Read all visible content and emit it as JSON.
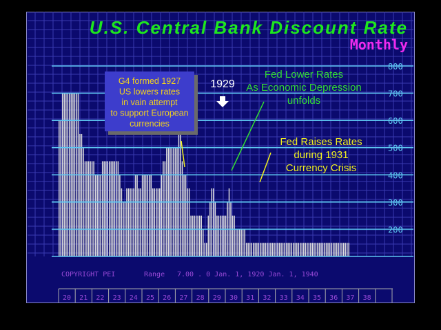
{
  "chart_data": {
    "type": "bar",
    "title": "U.S. Central Bank Discount Rate",
    "subtitle": "Monthly",
    "y_tick_labels": [
      "800",
      "700",
      "600",
      "500",
      "400",
      "300",
      "200"
    ],
    "y_ticks": [
      800,
      700,
      600,
      500,
      400,
      300,
      200
    ],
    "ylim": [
      100,
      800
    ],
    "x_tick_labels": [
      "20",
      "21",
      "22",
      "23",
      "24",
      "25",
      "26",
      "27",
      "28",
      "29",
      "30",
      "31",
      "32",
      "33",
      "34",
      "35",
      "36",
      "37",
      "38"
    ],
    "x_range_years": [
      1920,
      1940
    ],
    "values": [
      600,
      600,
      700,
      700,
      700,
      700,
      700,
      700,
      700,
      700,
      700,
      700,
      550,
      550,
      500,
      450,
      450,
      450,
      450,
      450,
      450,
      400,
      400,
      400,
      400,
      450,
      450,
      450,
      450,
      450,
      450,
      450,
      450,
      450,
      450,
      400,
      350,
      300,
      300,
      350,
      350,
      350,
      350,
      350,
      400,
      400,
      350,
      350,
      400,
      400,
      400,
      400,
      400,
      400,
      350,
      350,
      350,
      350,
      350,
      400,
      450,
      450,
      500,
      500,
      500,
      500,
      500,
      500,
      500,
      600,
      600,
      450,
      400,
      400,
      350,
      350,
      250,
      250,
      250,
      250,
      250,
      250,
      250,
      200,
      150,
      150,
      250,
      300,
      350,
      350,
      300,
      250,
      250,
      250,
      250,
      250,
      250,
      300,
      350,
      300,
      250,
      250,
      200,
      200,
      200,
      200,
      200,
      200,
      150,
      150,
      150,
      150,
      150,
      150,
      150,
      150,
      150,
      150,
      150,
      150,
      150,
      150,
      150,
      150,
      150,
      150,
      150,
      150,
      150,
      150,
      150,
      150,
      150,
      150,
      150,
      150,
      150,
      150,
      150,
      150,
      150,
      150,
      150,
      150,
      150,
      150,
      150,
      150,
      150,
      150,
      150,
      150,
      150,
      150,
      150,
      150,
      150,
      150,
      150,
      150,
      150,
      150,
      150,
      150,
      150,
      150,
      150,
      150
    ],
    "annotations": {
      "g4_box": [
        "G4 formed 1927",
        "US lowers rates",
        "in vain attempt",
        "to support European",
        "currencies"
      ],
      "year_1929": "1929",
      "fed_lower": [
        "Fed Lower Rates",
        "As Economic Depression",
        "unfolds"
      ],
      "fed_raise": [
        "Fed Raises Rates",
        "during 1931",
        "Currency Crisis"
      ]
    },
    "footer": {
      "copyright": "COPYRIGHT PEI",
      "range_label": "Range",
      "range_text": "7.00 . 0 Jan.  1, 1920 Jan.  1, 1940"
    },
    "colors": {
      "background": "#0b0a6e",
      "grid": "#3a3ab0",
      "hlines": "#5ec8f2",
      "bars": "#dcdcdc",
      "title": "#1ee61e",
      "subtitle": "#ee2aee",
      "green_text": "#33dd33",
      "yellow_text": "#f2f21e",
      "box": "#3d3dcc",
      "box_text": "#f2d21e",
      "footer": "#9a4ad8",
      "white": "#ffffff"
    }
  }
}
